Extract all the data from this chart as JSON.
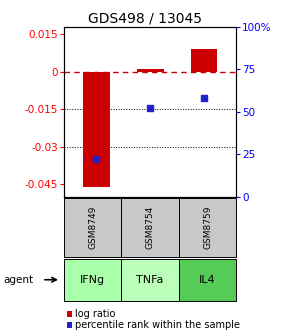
{
  "title": "GDS498 / 13045",
  "samples": [
    "GSM8749",
    "GSM8754",
    "GSM8759"
  ],
  "agents": [
    "IFNg",
    "TNFa",
    "IL4"
  ],
  "log_ratios": [
    -0.046,
    0.001,
    0.009
  ],
  "percentile_ranks": [
    22,
    52,
    58
  ],
  "ylim_left": [
    -0.05,
    0.018
  ],
  "ylim_right": [
    0,
    100
  ],
  "yticks_left": [
    0.015,
    0,
    -0.015,
    -0.03,
    -0.045
  ],
  "yticks_right": [
    100,
    75,
    50,
    25,
    0
  ],
  "hlines_dashed": [
    0
  ],
  "hlines_dotted": [
    -0.015,
    -0.03
  ],
  "bar_color": "#cc0000",
  "dot_color": "#2222cc",
  "zero_line_color": "#cc0000",
  "sample_bg_color": "#c8c8c8",
  "agent_colors": [
    "#aaffaa",
    "#bbffbb",
    "#55cc55"
  ],
  "legend_log_color": "#cc0000",
  "legend_pct_color": "#2222cc",
  "bar_width": 0.5,
  "title_fontsize": 10,
  "tick_fontsize": 7.5,
  "legend_fontsize": 7,
  "sample_fontsize": 6.5,
  "agent_fontsize": 8
}
